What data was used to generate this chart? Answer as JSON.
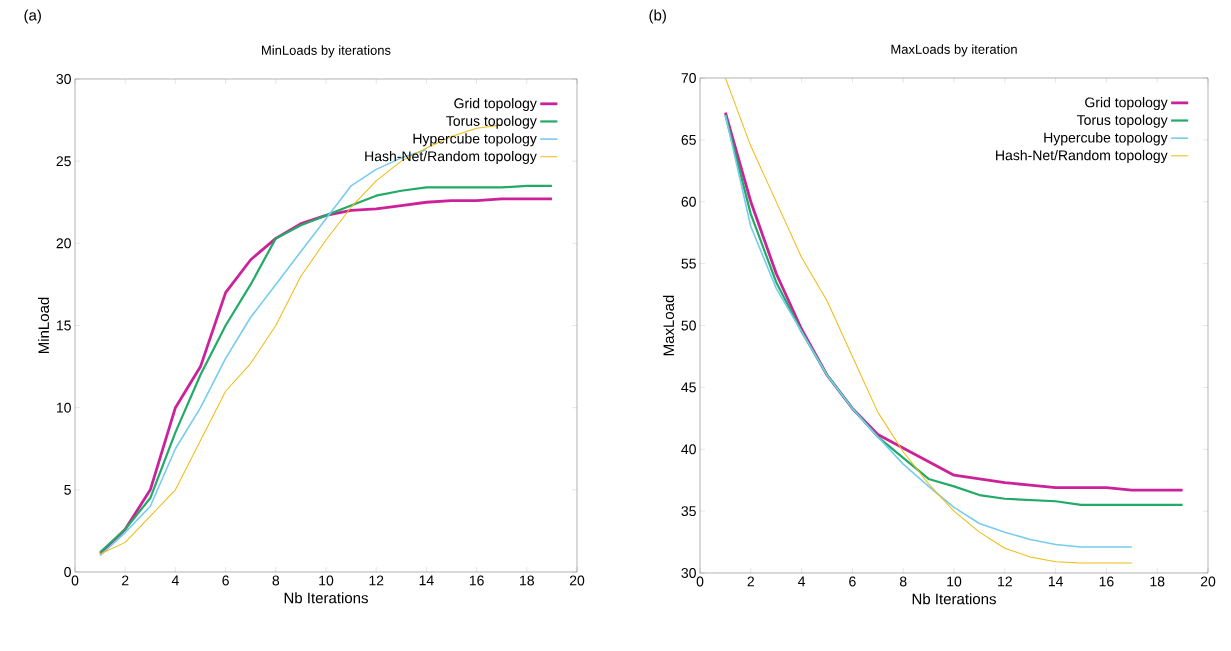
{
  "chart_data": [
    {
      "type": "line",
      "title": "MinLoads by iterations",
      "xlabel": "Nb Iterations",
      "ylabel": "MinLoad",
      "annotations": [
        "(a)"
      ],
      "xlim": [
        0,
        20
      ],
      "ylim": [
        0,
        30
      ],
      "xticks": [
        0,
        2,
        4,
        6,
        8,
        10,
        12,
        14,
        16,
        18,
        20
      ],
      "yticks": [
        0,
        5,
        10,
        15,
        20,
        25,
        30
      ],
      "legend": "top right",
      "series": [
        {
          "name": "Grid topology",
          "color": "#cc2299",
          "x": [
            1,
            2,
            3,
            4,
            5,
            6,
            7,
            8,
            9,
            10,
            11,
            12,
            13,
            14,
            15,
            16,
            17,
            18,
            19
          ],
          "values": [
            1.1,
            2.6,
            5,
            10,
            12.5,
            17,
            19,
            20.3,
            21.2,
            21.7,
            22,
            22.1,
            22.3,
            22.5,
            22.6,
            22.6,
            22.7,
            22.7,
            22.7
          ]
        },
        {
          "name": "Torus topology",
          "color": "#22aa66",
          "x": [
            1,
            2,
            3,
            4,
            5,
            6,
            7,
            8,
            9,
            10,
            11,
            12,
            13,
            14,
            15,
            16,
            17,
            18,
            19
          ],
          "values": [
            1.2,
            2.6,
            4.5,
            8.5,
            12,
            15,
            17.5,
            20.3,
            21.1,
            21.7,
            22.3,
            22.9,
            23.2,
            23.4,
            23.4,
            23.4,
            23.4,
            23.5,
            23.5
          ]
        },
        {
          "name": "Hypercube topology",
          "color": "#77ccee",
          "x": [
            1,
            2,
            3,
            4,
            5,
            6,
            7,
            8,
            9,
            10,
            11,
            12,
            13,
            14
          ],
          "values": [
            1,
            2.4,
            4,
            7.5,
            10,
            13,
            15.5,
            17.5,
            19.5,
            21.5,
            23.5,
            24.5,
            25.2,
            25.7
          ]
        },
        {
          "name": "Hash-Net/Random topology",
          "color": "#eebb11",
          "x": [
            1,
            2,
            3,
            4,
            5,
            6,
            7,
            8,
            9,
            10,
            11,
            12,
            13,
            14,
            15,
            16,
            17
          ],
          "values": [
            1.1,
            1.8,
            3.4,
            5,
            8,
            11,
            12.7,
            15,
            18,
            20.2,
            22.2,
            23.8,
            25,
            25.8,
            26.5,
            27,
            27.2
          ]
        }
      ]
    },
    {
      "type": "line",
      "title": "MaxLoads by iteration",
      "xlabel": "Nb Iterations",
      "ylabel": "MaxLoad",
      "annotations": [
        "(b)"
      ],
      "xlim": [
        0,
        20
      ],
      "ylim": [
        30,
        70
      ],
      "xticks": [
        0,
        2,
        4,
        6,
        8,
        10,
        12,
        14,
        16,
        18,
        20
      ],
      "yticks": [
        30,
        35,
        40,
        45,
        50,
        55,
        60,
        65,
        70
      ],
      "legend": "top right",
      "series": [
        {
          "name": "Grid topology",
          "color": "#cc2299",
          "x": [
            1,
            2,
            3,
            4,
            5,
            6,
            7,
            8,
            9,
            10,
            11,
            12,
            13,
            14,
            15,
            16,
            17,
            18,
            19
          ],
          "values": [
            67.2,
            60,
            54.2,
            49.7,
            46,
            43.3,
            41.2,
            40.1,
            39,
            37.9,
            37.6,
            37.3,
            37.1,
            36.9,
            36.9,
            36.9,
            36.7,
            36.7,
            36.7
          ]
        },
        {
          "name": "Torus topology",
          "color": "#22aa66",
          "x": [
            1,
            2,
            3,
            4,
            5,
            6,
            7,
            8,
            9,
            10,
            11,
            12,
            13,
            14,
            15,
            16,
            17,
            18,
            19
          ],
          "values": [
            67,
            59,
            53.5,
            49.5,
            46,
            43.3,
            41,
            39.3,
            37.6,
            37,
            36.3,
            36,
            35.9,
            35.8,
            35.5,
            35.5,
            35.5,
            35.5,
            35.5
          ]
        },
        {
          "name": "Hypercube topology",
          "color": "#77ccee",
          "x": [
            1,
            2,
            3,
            4,
            5,
            6,
            7,
            8,
            9,
            10,
            11,
            12,
            13,
            14,
            15,
            16,
            17
          ],
          "values": [
            67,
            58,
            53,
            49.5,
            46,
            43.3,
            41,
            38.8,
            37,
            35.3,
            34,
            33.3,
            32.7,
            32.3,
            32.1,
            32.1,
            32.1
          ]
        },
        {
          "name": "Hash-Net/Random topology",
          "color": "#eebb11",
          "x": [
            1,
            2,
            3,
            4,
            5,
            6,
            7,
            8,
            9,
            10,
            11,
            12,
            13,
            14,
            15,
            16,
            17
          ],
          "values": [
            70,
            64.5,
            60,
            55.5,
            52,
            47.5,
            43,
            39.8,
            37.2,
            35,
            33.3,
            32,
            31.3,
            30.9,
            30.8,
            30.8,
            30.8
          ]
        }
      ]
    }
  ]
}
